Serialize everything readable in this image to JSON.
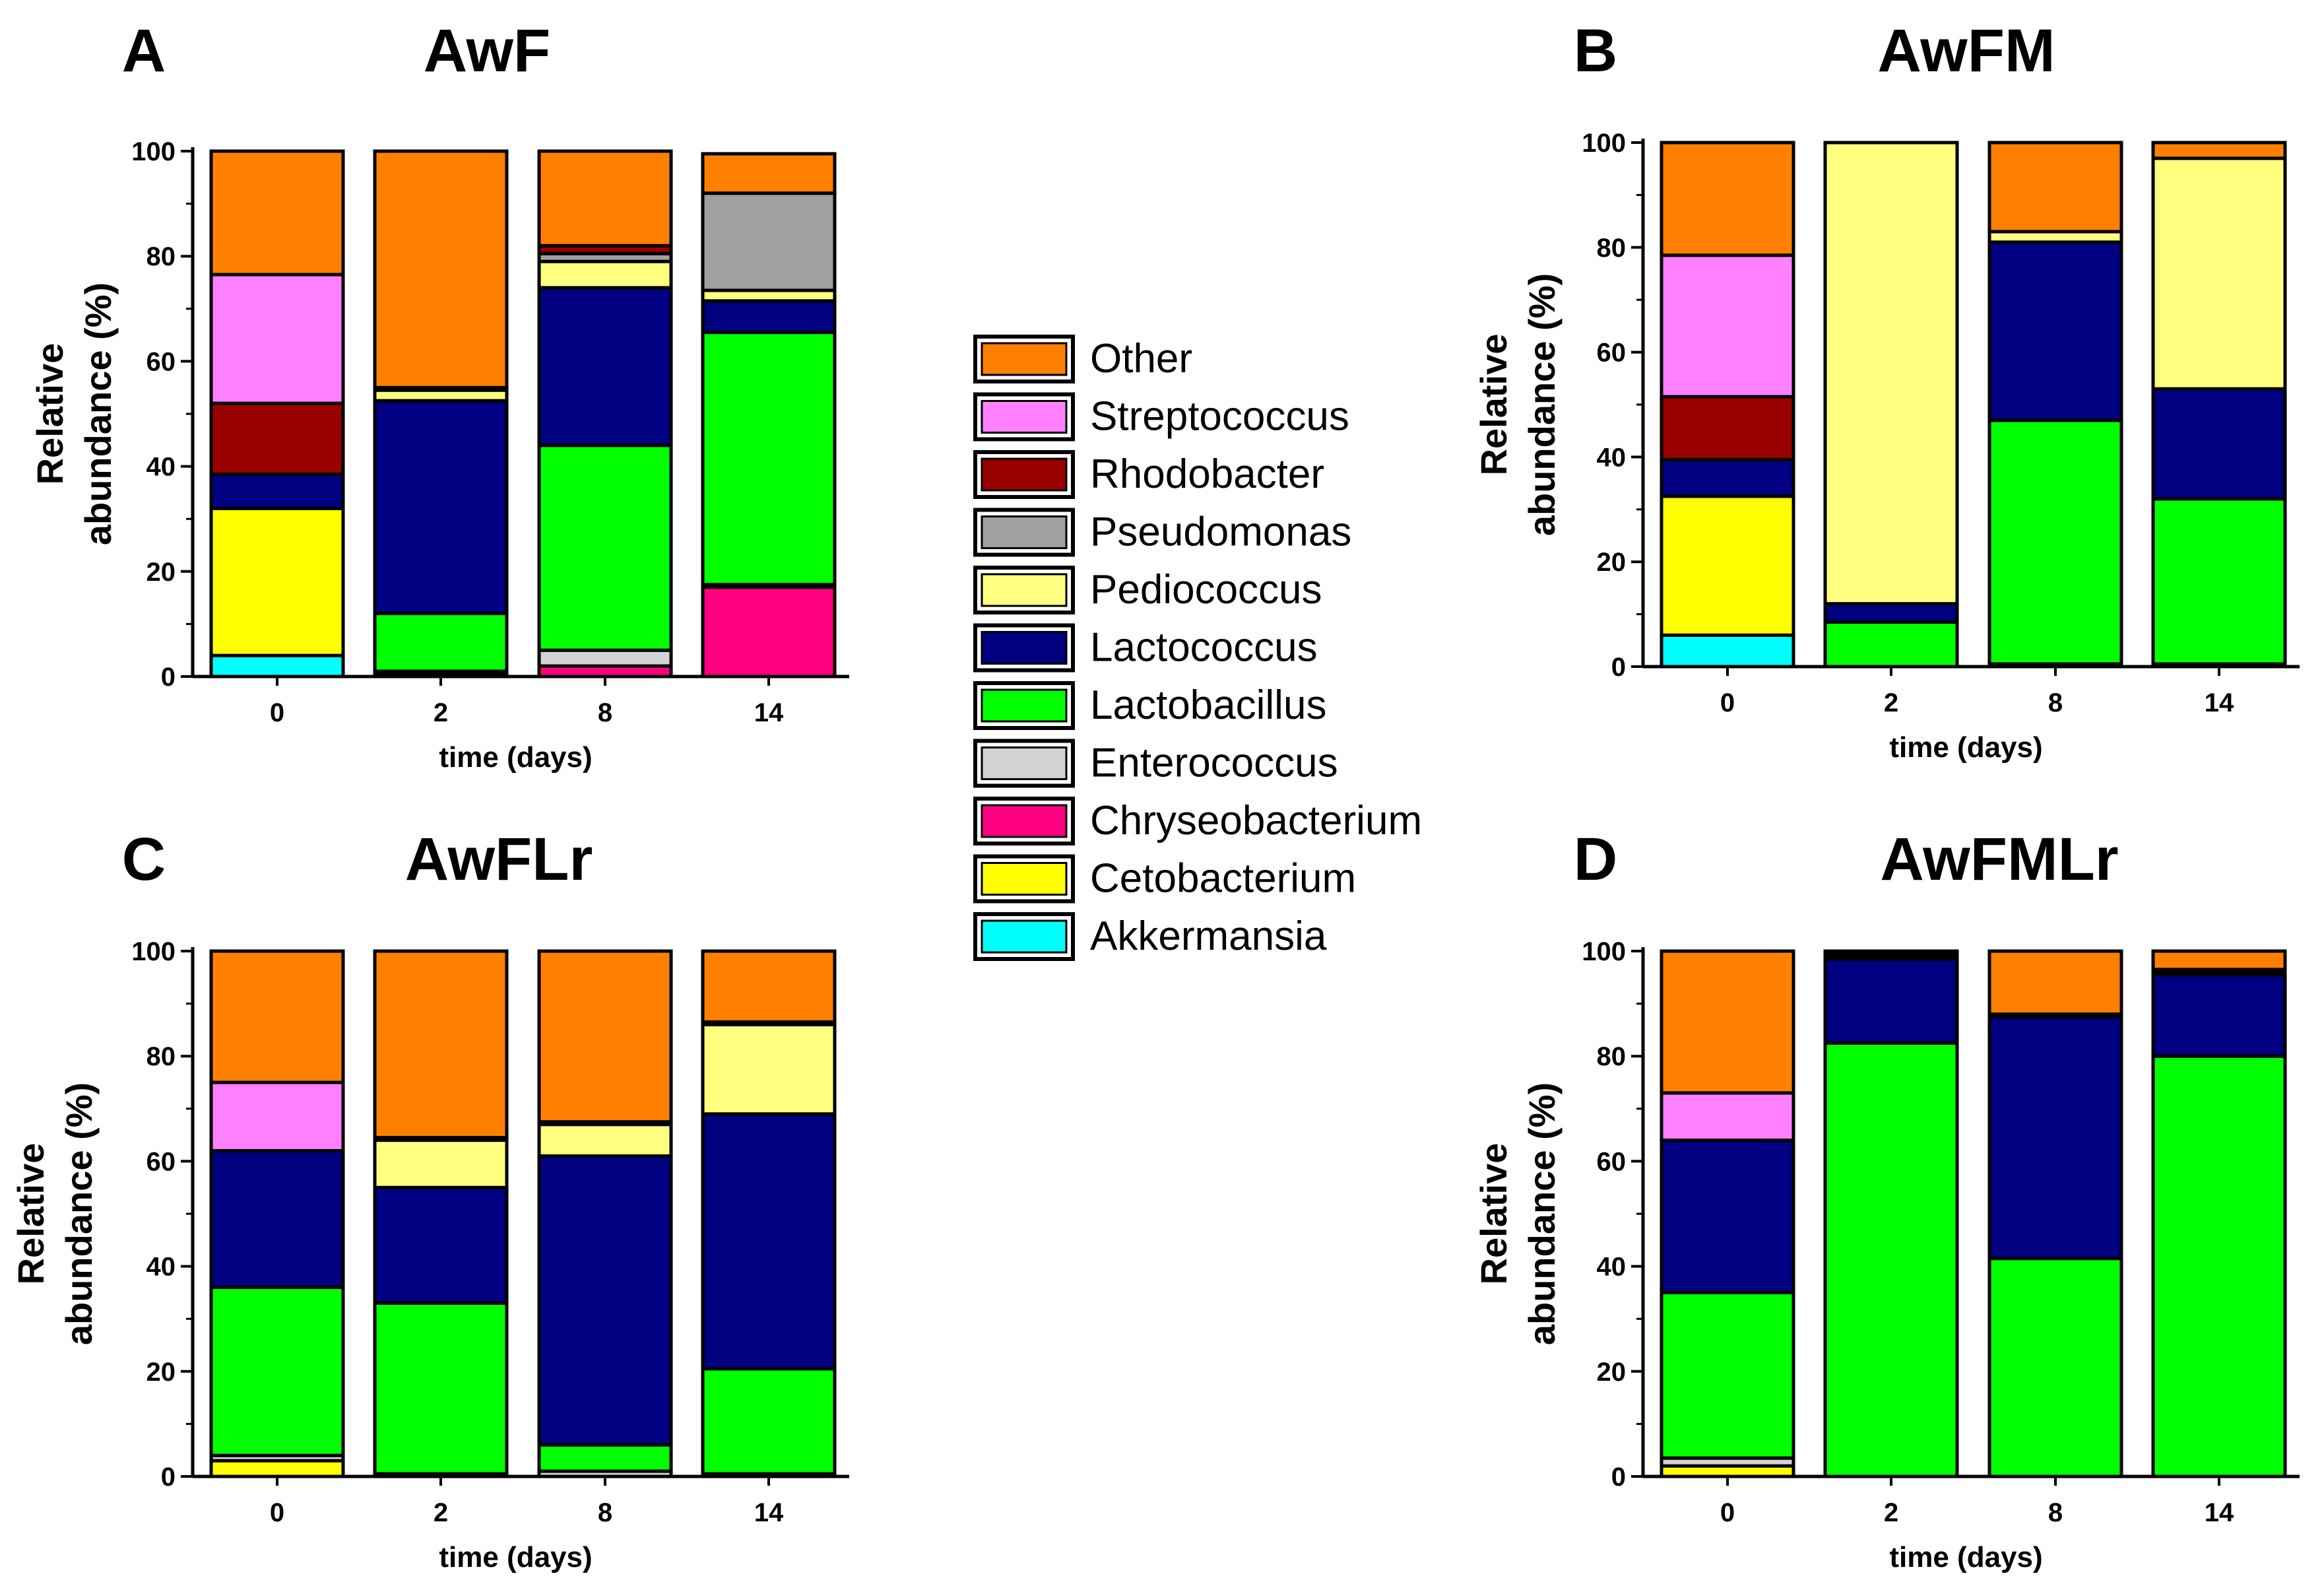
{
  "categories_legend": [
    "Other",
    "Streptococcus",
    "Rhodobacter",
    "Pseudomonas",
    "Pediococcus",
    "Lactococcus",
    "Lactobacillus",
    "Enterococcus",
    "Chryseobacterium",
    "Cetobacterium",
    "Akkermansia"
  ],
  "colors": {
    "Akkermansia": "#00ffff",
    "Cetobacterium": "#ffff00",
    "Chryseobacterium": "#ff0080",
    "Enterococcus": "#d3d3d3",
    "Lactobacillus": "#00ff00",
    "Lactococcus": "#000080",
    "Pediococcus": "#ffff80",
    "Pseudomonas": "#a0a0a0",
    "Rhodobacter": "#990000",
    "Streptococcus": "#ff80ff",
    "Other": "#ff8000"
  },
  "chart_data": [
    {
      "type": "bar",
      "stacked": true,
      "panel": "A",
      "title": "AwF",
      "xlabel": "time (days)",
      "ylabel_line1": "Relative",
      "ylabel_line2": "abundance (%)",
      "ylim": [
        0,
        100
      ],
      "yticks": [
        "0",
        "20",
        "40",
        "60",
        "80",
        "100"
      ],
      "categories": [
        "0",
        "2",
        "8",
        "14"
      ],
      "series": [
        {
          "name": "Akkermansia",
          "values": [
            4,
            0,
            0,
            0
          ]
        },
        {
          "name": "Cetobacterium",
          "values": [
            28,
            0,
            0,
            0
          ]
        },
        {
          "name": "Chryseobacterium",
          "values": [
            0,
            0.5,
            2,
            17
          ]
        },
        {
          "name": "Enterococcus",
          "values": [
            0,
            0.5,
            3,
            0.5
          ]
        },
        {
          "name": "Lactobacillus",
          "values": [
            0,
            11,
            39,
            48
          ]
        },
        {
          "name": "Lactococcus",
          "values": [
            6.5,
            40.5,
            30,
            6
          ]
        },
        {
          "name": "Pediococcus",
          "values": [
            0,
            2,
            5,
            2
          ]
        },
        {
          "name": "Pseudomonas",
          "values": [
            0,
            0,
            1.5,
            18.5
          ]
        },
        {
          "name": "Rhodobacter",
          "values": [
            13.5,
            0.5,
            1.5,
            0
          ]
        },
        {
          "name": "Streptococcus",
          "values": [
            24.5,
            0,
            0,
            0
          ]
        },
        {
          "name": "Other",
          "values": [
            23.5,
            45,
            18,
            7.5
          ]
        }
      ]
    },
    {
      "type": "bar",
      "stacked": true,
      "panel": "B",
      "title": "AwFM",
      "xlabel": "time (days)",
      "ylabel_line1": "Relative",
      "ylabel_line2": "abundance (%)",
      "ylim": [
        0,
        100
      ],
      "yticks": [
        "0",
        "20",
        "40",
        "60",
        "80",
        "100"
      ],
      "categories": [
        "0",
        "2",
        "8",
        "14"
      ],
      "series": [
        {
          "name": "Akkermansia",
          "values": [
            6,
            0,
            0,
            0
          ]
        },
        {
          "name": "Cetobacterium",
          "values": [
            26.5,
            0,
            0,
            0
          ]
        },
        {
          "name": "Chryseobacterium",
          "values": [
            0,
            0,
            0,
            0
          ]
        },
        {
          "name": "Enterococcus",
          "values": [
            0,
            0,
            0.5,
            0.5
          ]
        },
        {
          "name": "Lactobacillus",
          "values": [
            0,
            8.5,
            46.5,
            31.5
          ]
        },
        {
          "name": "Lactococcus",
          "values": [
            7,
            3.5,
            34,
            21
          ]
        },
        {
          "name": "Pediococcus",
          "values": [
            0,
            88,
            2,
            44
          ]
        },
        {
          "name": "Pseudomonas",
          "values": [
            0,
            0,
            0,
            0
          ]
        },
        {
          "name": "Rhodobacter",
          "values": [
            12,
            0,
            0,
            0
          ]
        },
        {
          "name": "Streptococcus",
          "values": [
            27,
            0,
            0,
            0
          ]
        },
        {
          "name": "Other",
          "values": [
            21.5,
            0,
            17,
            3
          ]
        }
      ]
    },
    {
      "type": "bar",
      "stacked": true,
      "panel": "C",
      "title": "AwFLr",
      "xlabel": "time (days)",
      "ylabel_line1": "Relative",
      "ylabel_line2": "abundance (%)",
      "ylim": [
        0,
        100
      ],
      "yticks": [
        "0",
        "20",
        "40",
        "60",
        "80",
        "100"
      ],
      "categories": [
        "0",
        "2",
        "8",
        "14"
      ],
      "series": [
        {
          "name": "Akkermansia",
          "values": [
            0,
            0,
            0,
            0
          ]
        },
        {
          "name": "Cetobacterium",
          "values": [
            3,
            0,
            0,
            0
          ]
        },
        {
          "name": "Chryseobacterium",
          "values": [
            0,
            0,
            0,
            0
          ]
        },
        {
          "name": "Enterococcus",
          "values": [
            1,
            0.5,
            1,
            0.5
          ]
        },
        {
          "name": "Lactobacillus",
          "values": [
            32,
            32.5,
            5,
            20
          ]
        },
        {
          "name": "Lactococcus",
          "values": [
            26,
            22,
            55,
            48.5
          ]
        },
        {
          "name": "Pediococcus",
          "values": [
            0,
            9,
            6,
            17
          ]
        },
        {
          "name": "Pseudomonas",
          "values": [
            0,
            0,
            0,
            0
          ]
        },
        {
          "name": "Rhodobacter",
          "values": [
            0,
            0.5,
            0.5,
            0.5
          ]
        },
        {
          "name": "Streptococcus",
          "values": [
            13,
            0,
            0,
            0
          ]
        },
        {
          "name": "Other",
          "values": [
            25,
            35.5,
            32.5,
            13.5
          ]
        }
      ]
    },
    {
      "type": "bar",
      "stacked": true,
      "panel": "D",
      "title": "AwFMLr",
      "xlabel": "time (days)",
      "ylabel_line1": "Relative",
      "ylabel_line2": "abundance (%)",
      "ylim": [
        0,
        100
      ],
      "yticks": [
        "0",
        "20",
        "40",
        "60",
        "80",
        "100"
      ],
      "categories": [
        "0",
        "2",
        "8",
        "14"
      ],
      "series": [
        {
          "name": "Akkermansia",
          "values": [
            0,
            0,
            0,
            0
          ]
        },
        {
          "name": "Cetobacterium",
          "values": [
            2,
            0,
            0,
            0
          ]
        },
        {
          "name": "Chryseobacterium",
          "values": [
            0,
            0,
            0,
            0
          ]
        },
        {
          "name": "Enterococcus",
          "values": [
            1.5,
            0,
            0,
            0
          ]
        },
        {
          "name": "Lactobacillus",
          "values": [
            31.5,
            82.5,
            41.5,
            80
          ]
        },
        {
          "name": "Lactococcus",
          "values": [
            29,
            16,
            46,
            15.5
          ]
        },
        {
          "name": "Pediococcus",
          "values": [
            0,
            0.5,
            0,
            0.5
          ]
        },
        {
          "name": "Pseudomonas",
          "values": [
            0,
            0,
            0,
            0
          ]
        },
        {
          "name": "Rhodobacter",
          "values": [
            0,
            0.5,
            0.5,
            0.5
          ]
        },
        {
          "name": "Streptococcus",
          "values": [
            9,
            0,
            0,
            0
          ]
        },
        {
          "name": "Other",
          "values": [
            27,
            0.5,
            12,
            3.5
          ]
        }
      ]
    }
  ]
}
